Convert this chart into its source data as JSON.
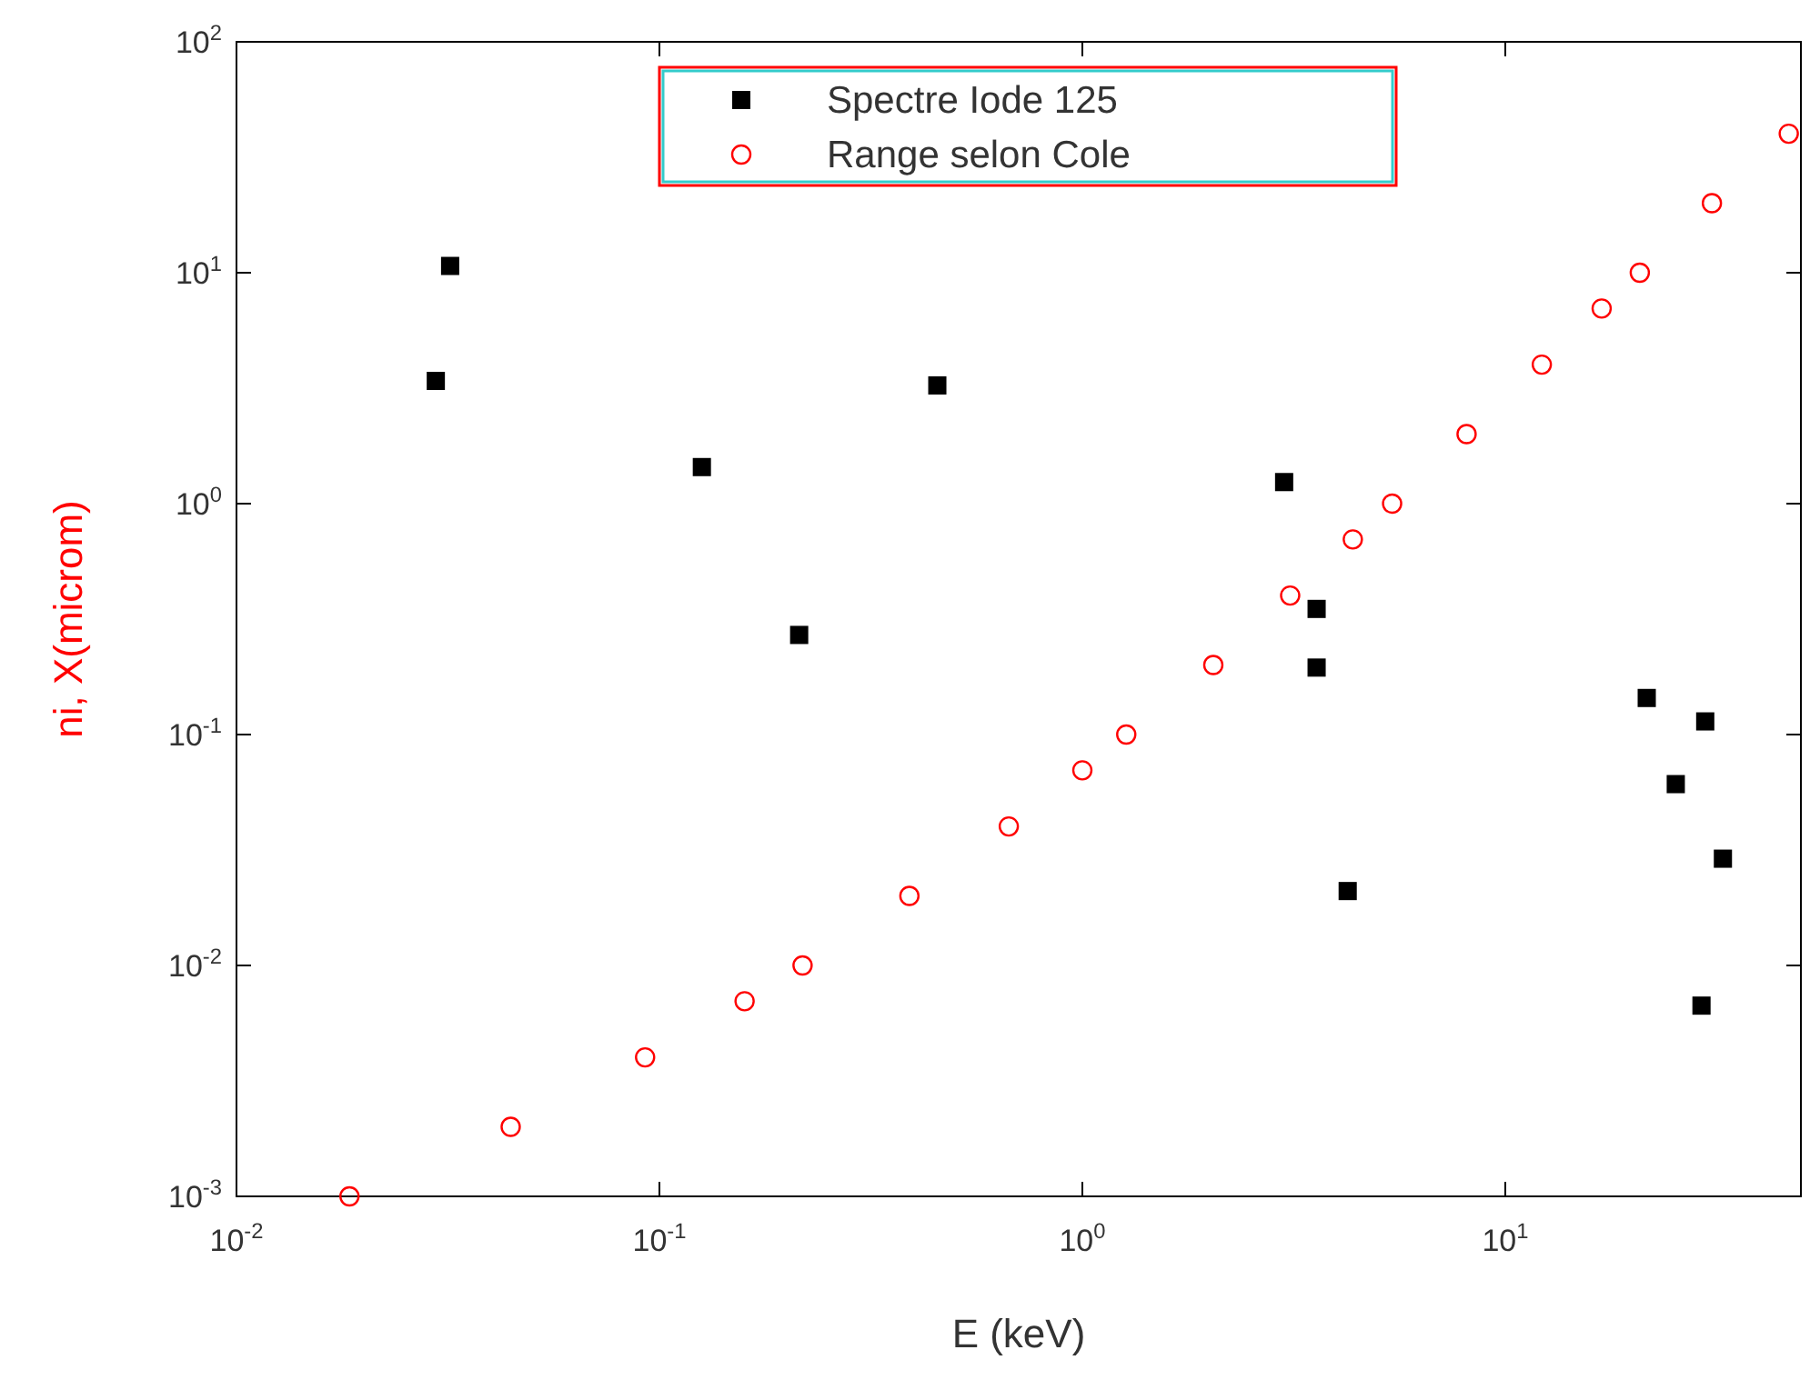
{
  "chart_data": {
    "type": "scatter",
    "xlabel": "E (keV)",
    "ylabel": "ni, X(microm)",
    "log": "xy",
    "legend": "top",
    "grid": false,
    "xlim": [
      0.01,
      50
    ],
    "ylim": [
      0.001,
      100
    ],
    "xticks": [
      {
        "value": 0.01,
        "label": "10$^{-2}$"
      },
      {
        "value": 0.1,
        "label": "10$^{-1}$"
      },
      {
        "value": 1,
        "label": "10$^{0}$"
      },
      {
        "value": 10,
        "label": "10$^{1}$"
      }
    ],
    "yticks": [
      {
        "value": 0.001,
        "label": "10$^{-3}$"
      },
      {
        "value": 0.01,
        "label": "10$^{-2}$"
      },
      {
        "value": 0.1,
        "label": "10$^{-1}$"
      },
      {
        "value": 1,
        "label": "10$^{0}$"
      },
      {
        "value": 10,
        "label": "10$^{1}$"
      },
      {
        "value": 100,
        "label": "10$^{2}$"
      }
    ],
    "series": [
      {
        "name": "Spectre Iode 125",
        "color": "#000000",
        "marker": "square",
        "x": [
          0.0296,
          0.032,
          0.126,
          0.214,
          0.454,
          3.0,
          3.58,
          3.58,
          4.24,
          21.6,
          29.7,
          25.3,
          32.7,
          29.1
        ],
        "values": [
          3.4,
          10.7,
          1.44,
          0.27,
          3.25,
          1.24,
          0.35,
          0.195,
          0.021,
          0.144,
          0.114,
          0.061,
          0.029,
          0.0067
        ]
      },
      {
        "name": "Range selon Cole",
        "color": "#ff0000",
        "marker": "circle",
        "x": [
          0.0185,
          0.0445,
          0.0925,
          0.159,
          0.218,
          0.39,
          0.67,
          1,
          1.27,
          2.04,
          3.1,
          4.36,
          5.4,
          8.1,
          12.2,
          16.9,
          20.8,
          30.8,
          46.8
        ],
        "values": [
          0.001,
          0.002,
          0.004,
          0.007,
          0.01,
          0.02,
          0.04,
          0.07,
          0.1,
          0.2,
          0.4,
          0.7,
          1,
          2,
          4,
          7,
          10,
          20,
          40
        ]
      }
    ]
  }
}
